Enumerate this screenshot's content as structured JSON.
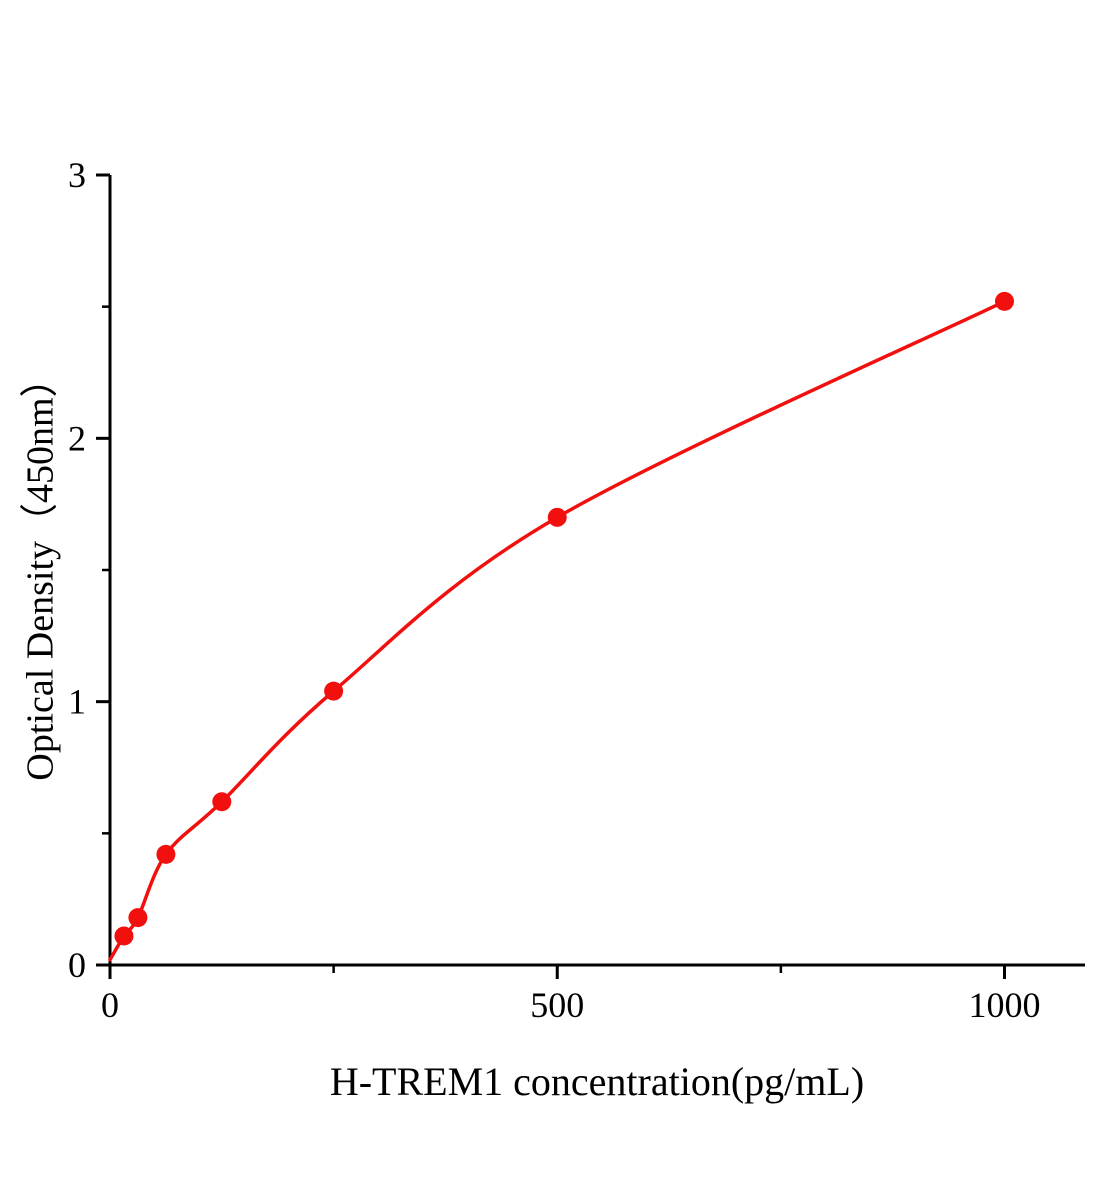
{
  "figure": {
    "background_color": "#ffffff"
  },
  "chart_data": {
    "type": "scatter",
    "title": "",
    "xlabel": "H-TREM1 concentration(pg/mL)",
    "ylabel": "Optical Density（450nm）",
    "x": [
      0,
      15.6,
      31.2,
      62.5,
      125,
      250,
      500,
      1000
    ],
    "y": [
      0.02,
      0.11,
      0.18,
      0.42,
      0.62,
      1.04,
      1.7,
      2.52
    ],
    "hide_marker_at": [
      0
    ],
    "xlim": [
      0,
      1090
    ],
    "ylim": [
      0,
      3
    ],
    "xticks": [
      0,
      500,
      1000
    ],
    "xminorticks": [
      250,
      750
    ],
    "yticks": [
      0,
      1,
      2,
      3
    ],
    "yminorticks": [
      0.5,
      1.5,
      2.5
    ],
    "line_color": "#f2100f",
    "marker_color": "#f2100f",
    "axis_color": "#000000",
    "grid": false
  }
}
